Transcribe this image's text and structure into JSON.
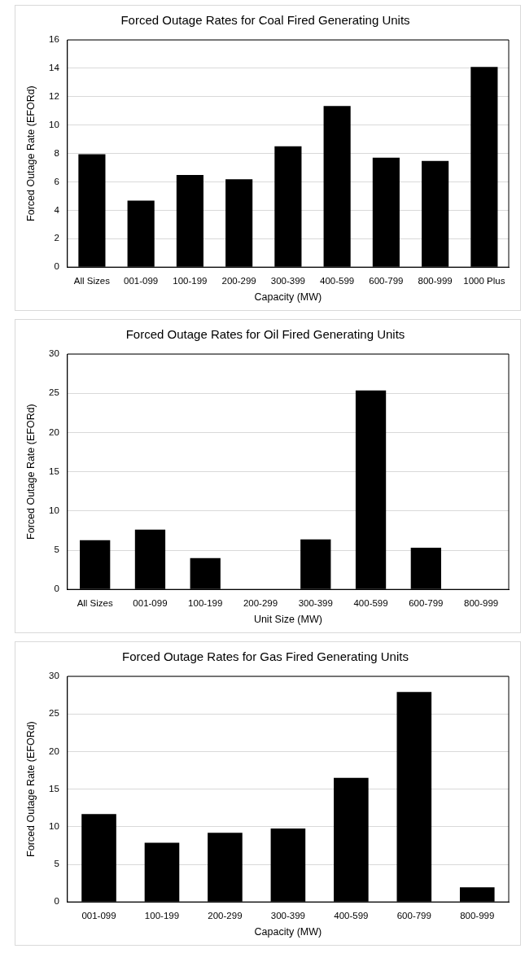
{
  "chart_data": [
    {
      "type": "bar",
      "title": "Forced Outage Rates for Coal Fired Generating Units",
      "xlabel": "Capacity (MW)",
      "ylabel": "Forced Outage Rate (EFORd)",
      "categories": [
        "All Sizes",
        "001-099",
        "100-199",
        "200-299",
        "300-399",
        "400-599",
        "600-799",
        "800-999",
        "1000 Plus"
      ],
      "values": [
        7.95,
        4.68,
        6.49,
        6.18,
        8.51,
        11.34,
        7.71,
        7.47,
        14.1
      ],
      "color": "#000000",
      "ylim": [
        0,
        16
      ],
      "yticks": [
        0,
        2,
        4,
        6,
        8,
        10,
        12,
        14,
        16
      ],
      "grid": "y",
      "legend": false
    },
    {
      "type": "bar",
      "title": "Forced Outage Rates for Oil Fired Generating Units",
      "xlabel": "Unit Size (MW)",
      "ylabel": "Forced Outage Rate (EFORd)",
      "categories": [
        "All Sizes",
        "001-099",
        "100-199",
        "200-299",
        "300-399",
        "400-599",
        "600-799",
        "800-999"
      ],
      "values": [
        6.28,
        7.62,
        3.98,
        0,
        6.37,
        25.35,
        5.32,
        0.05
      ],
      "color": "#000000",
      "ylim": [
        0,
        30
      ],
      "yticks": [
        0,
        5,
        10,
        15,
        20,
        25,
        30
      ],
      "grid": "y",
      "legend": false
    },
    {
      "type": "bar",
      "title": "Forced Outage Rates for Gas Fired Generating Units",
      "xlabel": "Capacity (MW)",
      "ylabel": "Forced Outage Rate (EFORd)",
      "categories": [
        "001-099",
        "100-199",
        "200-299",
        "300-399",
        "400-599",
        "600-799",
        "800-999"
      ],
      "values": [
        11.67,
        7.88,
        9.19,
        9.77,
        16.49,
        27.93,
        1.94
      ],
      "color": "#000000",
      "ylim": [
        0,
        30
      ],
      "yticks": [
        0,
        5,
        10,
        15,
        20,
        25,
        30
      ],
      "grid": "y",
      "legend": false
    }
  ]
}
